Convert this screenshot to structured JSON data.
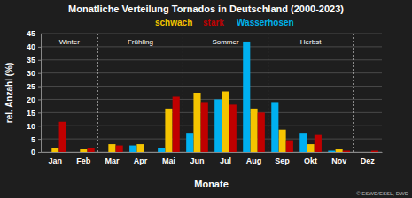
{
  "chart_data": {
    "type": "bar",
    "title": "Monatliche Verteilung Tornados in Deutschland (2000-2023)",
    "x_label": "Monate",
    "y_label": "rel. Anzahl (%)",
    "annotations": [
      "Winter",
      "Frühling",
      "Sommer",
      "Herbst"
    ],
    "source": "© ESWD/ESSL, DWD",
    "categories": [
      "Jan",
      "Feb",
      "Mar",
      "Apr",
      "Mai",
      "Jun",
      "Jul",
      "Aug",
      "Sep",
      "Okt",
      "Nov",
      "Dez"
    ],
    "series": [
      {
        "name": "schwach",
        "color": "#f5c400",
        "values": [
          1.5,
          1,
          3,
          3,
          16.5,
          22.5,
          23,
          16.5,
          8.5,
          3,
          1,
          0
        ]
      },
      {
        "name": "stark",
        "color": "#c00000",
        "values": [
          11.5,
          1.5,
          2.5,
          0,
          21,
          19,
          18,
          15,
          4.5,
          6.5,
          0.5,
          0.5
        ]
      },
      {
        "name": "Wasserhosen",
        "color": "#00b0f0",
        "values": [
          0,
          0,
          0,
          2.5,
          1.5,
          7,
          20,
          42,
          19,
          7,
          0.5,
          0
        ]
      }
    ],
    "ylim": [
      0,
      45
    ],
    "yticks": [
      0,
      5,
      10,
      15,
      20,
      25,
      30,
      35,
      40,
      45
    ],
    "grid": true,
    "legend": "top"
  }
}
